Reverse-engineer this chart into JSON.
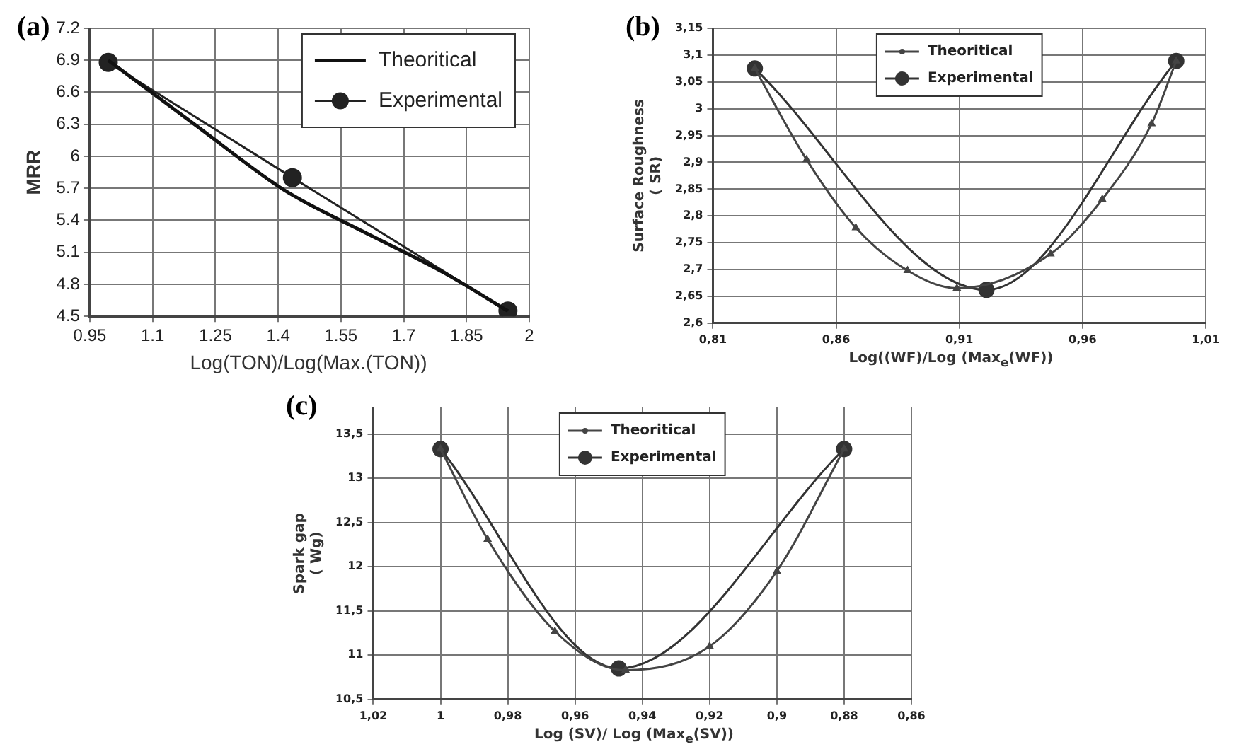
{
  "chart_data": [
    {
      "type": "line",
      "title": "(a)",
      "xlabel": "Log(TON)/Log(Max.(TON))",
      "ylabel": "MRR",
      "xlim": [
        0.95,
        2
      ],
      "xticks": [
        0.95,
        1.1,
        1.25,
        1.4,
        1.55,
        1.7,
        1.85,
        2
      ],
      "ylim": [
        4.5,
        7.2
      ],
      "yticks": [
        4.5,
        4.8,
        5.1,
        5.4,
        5.7,
        6,
        6.3,
        6.6,
        6.9,
        7.2
      ],
      "grid": true,
      "legend": "top right",
      "series": [
        {
          "name": "Theoritical",
          "color": "#111111",
          "marker": "none",
          "x": [
            0.994,
            1.2,
            1.4,
            1.46,
            1.6,
            1.8,
            1.949
          ],
          "values": [
            6.9,
            6.3,
            5.72,
            5.58,
            5.3,
            4.9,
            4.55
          ]
        },
        {
          "name": "Experimental",
          "color": "#222222",
          "marker": "circle",
          "x": [
            0.994,
            1.434,
            1.949
          ],
          "values": [
            6.88,
            5.8,
            4.55
          ]
        }
      ]
    },
    {
      "type": "line",
      "title": "(b)",
      "xlabel": "Log((WF)/Log (Max$_{e}$(WF))",
      "ylabel": "Surface Roughness\n( SR)",
      "xlim": [
        0.81,
        1.01
      ],
      "xticks": [
        {
          "value": 0.81,
          "label": "0,81"
        },
        {
          "value": 0.86,
          "label": "0,86"
        },
        {
          "value": 0.91,
          "label": "0,91"
        },
        {
          "value": 0.96,
          "label": "0,96"
        },
        {
          "value": 1.01,
          "label": "1,01"
        }
      ],
      "ylim": [
        2.6,
        3.15
      ],
      "yticks": [
        {
          "value": 2.6,
          "label": "2,6"
        },
        {
          "value": 2.65,
          "label": "2,65"
        },
        {
          "value": 2.7,
          "label": "2,7"
        },
        {
          "value": 2.75,
          "label": "2,75"
        },
        {
          "value": 2.8,
          "label": "2,8"
        },
        {
          "value": 2.85,
          "label": "2,85"
        },
        {
          "value": 2.9,
          "label": "2,9"
        },
        {
          "value": 2.95,
          "label": "2,95"
        },
        3,
        {
          "value": 3.05,
          "label": "3,05"
        },
        {
          "value": 3.1,
          "label": "3,1"
        },
        {
          "value": 3.15,
          "label": "3,15"
        }
      ],
      "grid": true,
      "legend": "top",
      "series": [
        {
          "name": "Theoritical",
          "color": "#444444",
          "marker": "triangle",
          "x": [
            0.827,
            0.848,
            0.868,
            0.889,
            0.909,
            0.947,
            0.968,
            0.988,
            0.998
          ],
          "values": [
            3.075,
            2.905,
            2.778,
            2.698,
            2.665,
            2.729,
            2.831,
            2.972,
            3.089
          ]
        },
        {
          "name": "Experimental",
          "color": "#333333",
          "marker": "circle",
          "x": [
            0.827,
            0.921,
            0.998
          ],
          "values": [
            3.075,
            2.662,
            3.089
          ]
        }
      ]
    },
    {
      "type": "line",
      "title": "(c)",
      "xlabel": "Log (SV)/ Log (Max$_{e}$(SV))",
      "ylabel": "Spark gap\n( Wg)",
      "xlim": [
        1.02,
        0.86
      ],
      "xticks": [
        {
          "value": 1.02,
          "label": "1,02"
        },
        1,
        {
          "value": 0.98,
          "label": "0,98"
        },
        {
          "value": 0.96,
          "label": "0,96"
        },
        {
          "value": 0.94,
          "label": "0,94"
        },
        {
          "value": 0.92,
          "label": "0,92"
        },
        {
          "value": 0.9,
          "label": "0,9"
        },
        {
          "value": 0.88,
          "label": "0,88"
        },
        {
          "value": 0.86,
          "label": "0,86"
        }
      ],
      "ylim": [
        10.5,
        13.8
      ],
      "yticks": [
        {
          "value": 10.5,
          "label": "10,5"
        },
        11,
        {
          "value": 11.5,
          "label": "11,5"
        },
        12,
        {
          "value": 12.5,
          "label": "12,5"
        },
        13,
        {
          "value": 13.5,
          "label": "13,5"
        }
      ],
      "grid": true,
      "legend": "top",
      "series": [
        {
          "name": "Theoritical",
          "color": "#444444",
          "marker": "triangle",
          "x": [
            1,
            0.986,
            0.966,
            0.945,
            0.92,
            0.9,
            0.88
          ],
          "values": [
            13.33,
            12.31,
            11.27,
            10.83,
            11.1,
            11.95,
            13.33
          ]
        },
        {
          "name": "Experimental",
          "color": "#333333",
          "marker": "circle",
          "x": [
            1,
            0.947,
            0.88
          ],
          "values": [
            13.33,
            10.85,
            13.33
          ]
        }
      ]
    }
  ]
}
